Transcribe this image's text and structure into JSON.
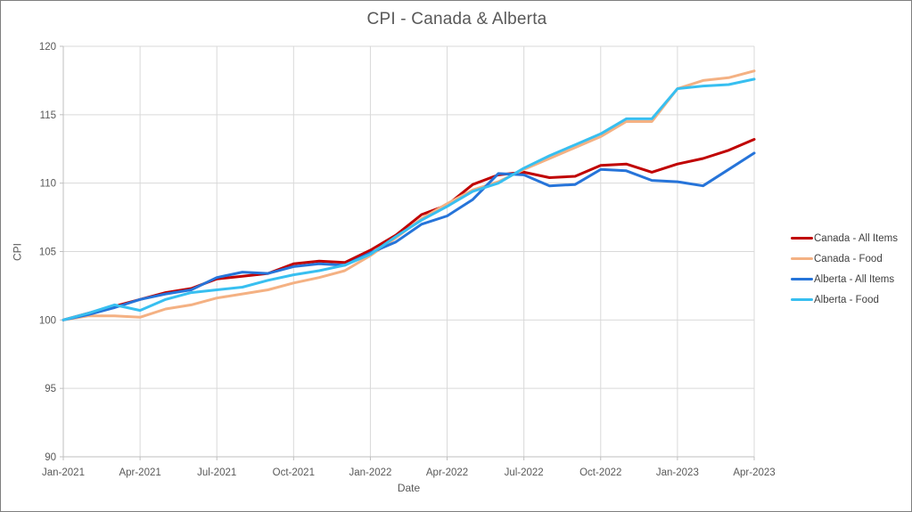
{
  "window": {
    "background_color": "#FFFFFF",
    "border_color": "#7F7F7F"
  },
  "text_colors": {
    "title": "#595959",
    "axis_labels": "#595959",
    "legend_labels": "#404040"
  },
  "grid_colors": {
    "gridline": "#D9D9D9",
    "axis_line": "#BFBFBF"
  },
  "chart_data": {
    "type": "line",
    "title": "CPI - Canada & Alberta",
    "xlabel": "Date",
    "ylabel": "CPI",
    "ylim": [
      90,
      120
    ],
    "yticks": [
      90,
      95,
      100,
      105,
      110,
      115,
      120
    ],
    "grid": true,
    "legend_position": "right",
    "x_tick_labels": [
      "Jan-2021",
      "Apr-2021",
      "Jul-2021",
      "Oct-2021",
      "Jan-2022",
      "Apr-2022",
      "Jul-2022",
      "Oct-2022",
      "Jan-2023",
      "Apr-2023"
    ],
    "x_tick_every_months": 3,
    "months": [
      "Jan-2021",
      "Feb-2021",
      "Mar-2021",
      "Apr-2021",
      "May-2021",
      "Jun-2021",
      "Jul-2021",
      "Aug-2021",
      "Sep-2021",
      "Oct-2021",
      "Nov-2021",
      "Dec-2021",
      "Jan-2022",
      "Feb-2022",
      "Mar-2022",
      "Apr-2022",
      "May-2022",
      "Jun-2022",
      "Jul-2022",
      "Aug-2022",
      "Sep-2022",
      "Oct-2022",
      "Nov-2022",
      "Dec-2022",
      "Jan-2023",
      "Feb-2023",
      "Mar-2023",
      "Apr-2023"
    ],
    "series": [
      {
        "name": "Canada - All Items",
        "color": "#C00000",
        "values": [
          100.0,
          100.5,
          101.0,
          101.5,
          102.0,
          102.3,
          103.0,
          103.2,
          103.4,
          104.1,
          104.3,
          104.2,
          105.1,
          106.2,
          107.7,
          108.4,
          109.9,
          110.6,
          110.8,
          110.4,
          110.5,
          111.3,
          111.4,
          110.8,
          111.4,
          111.8,
          112.4,
          113.2
        ]
      },
      {
        "name": "Canada - Food",
        "color": "#F4B183",
        "values": [
          100.0,
          100.3,
          100.3,
          100.2,
          100.8,
          101.1,
          101.6,
          101.9,
          102.2,
          102.7,
          103.1,
          103.6,
          104.7,
          106.0,
          107.4,
          108.5,
          109.5,
          110.1,
          111.0,
          111.8,
          112.6,
          113.4,
          114.5,
          114.5,
          116.9,
          117.5,
          117.7,
          118.2
        ]
      },
      {
        "name": "Alberta - All Items",
        "color": "#2674D9",
        "values": [
          100.0,
          100.4,
          100.9,
          101.5,
          101.9,
          102.2,
          103.1,
          103.5,
          103.4,
          103.9,
          104.1,
          104.0,
          104.9,
          105.7,
          107.0,
          107.6,
          108.8,
          110.7,
          110.6,
          109.8,
          109.9,
          111.0,
          110.9,
          110.2,
          110.1,
          109.8,
          111.0,
          112.2
        ]
      },
      {
        "name": "Alberta - Food",
        "color": "#38BFF0",
        "values": [
          100.0,
          100.5,
          101.1,
          100.7,
          101.5,
          102.0,
          102.2,
          102.4,
          102.9,
          103.3,
          103.6,
          104.0,
          104.8,
          106.1,
          107.3,
          108.3,
          109.4,
          110.0,
          111.1,
          112.0,
          112.8,
          113.6,
          114.7,
          114.7,
          116.9,
          117.1,
          117.2,
          117.6
        ]
      }
    ]
  }
}
